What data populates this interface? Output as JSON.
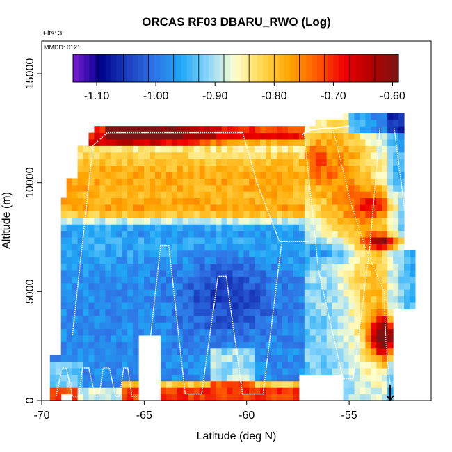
{
  "chart_data": {
    "type": "heatmap",
    "title": "ORCAS RF03 DBARU_RWO (Log)",
    "corner_note": "Flts: 3",
    "date_note": "MMDD: 0121",
    "xlabel": "Latitude (deg N)",
    "ylabel": "Altitude (m)",
    "xlim": [
      -70,
      -51
    ],
    "ylim": [
      0,
      16500
    ],
    "x_ticks": [
      -70,
      -65,
      -60,
      -55
    ],
    "x_tick_labels": [
      "-70",
      "-65",
      "-60",
      "-55"
    ],
    "y_ticks": [
      0,
      5000,
      10000,
      15000
    ],
    "y_tick_labels": [
      "0",
      "5000",
      "10000",
      "15000"
    ],
    "colorbar": {
      "min": -1.14,
      "max": -0.59,
      "ticks": [
        -1.1,
        -1.0,
        -0.9,
        -0.8,
        -0.7,
        -0.6
      ],
      "tick_labels": [
        "-1.10",
        "-1.00",
        "-0.90",
        "-0.80",
        "-0.70",
        "-0.60"
      ],
      "colors": [
        "#7a1fd6",
        "#00008b",
        "#1b3fbf",
        "#2f74e6",
        "#1fa8f5",
        "#8fd8fb",
        "#ffffcc",
        "#ffd54a",
        "#ffa500",
        "#ff5a00",
        "#ee0000",
        "#b40000",
        "#7a1515"
      ]
    },
    "arrow_marker": {
      "x": -53,
      "y": 700
    },
    "grid": false,
    "legend": "colorbar-top"
  }
}
